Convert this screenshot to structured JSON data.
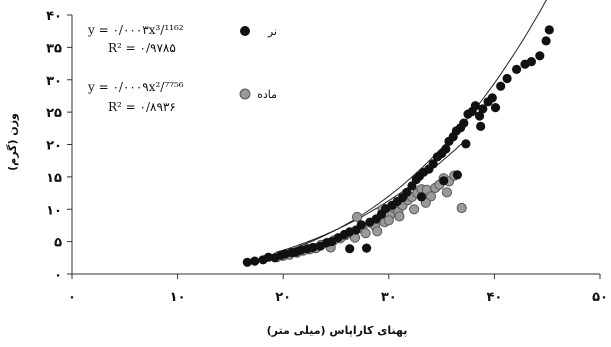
{
  "chart_data": {
    "type": "scatter",
    "x_tick_labels": [
      "۰",
      "۱۰",
      "۲۰",
      "۳۰",
      "۴۰",
      "۵۰"
    ],
    "y_tick_labels": [
      "۰",
      "۵",
      "۱۰",
      "۱۵",
      "۲۰",
      "۲۵",
      "۳۰",
      "۳۵",
      "۴۰"
    ],
    "xlabel": "پهنای کاراپاس (میلی متر)",
    "ylabel": "وزن (گرم)",
    "xlim": [
      0,
      50
    ],
    "ylim": [
      0,
      40
    ],
    "grid": false,
    "legend_position": "top-right",
    "series": [
      {
        "name": "نر",
        "marker": "filled-circle",
        "color": "#111111",
        "equation": "y = ۰/۰۰۰۳x³/¹¹⁶²",
        "r2": "R² = ۰/۹۷۸۵",
        "fit": {
          "a": 0.0003,
          "b": 3.1162
        },
        "points": [
          [
            16.6,
            1.8
          ],
          [
            17.3,
            2.0
          ],
          [
            18.1,
            2.2
          ],
          [
            18.6,
            2.6
          ],
          [
            19.2,
            2.5
          ],
          [
            19.8,
            2.9
          ],
          [
            20.2,
            3.1
          ],
          [
            20.8,
            3.3
          ],
          [
            21.2,
            3.4
          ],
          [
            21.7,
            3.7
          ],
          [
            22.3,
            3.9
          ],
          [
            22.8,
            4.1
          ],
          [
            23.5,
            4.3
          ],
          [
            24.1,
            4.8
          ],
          [
            24.6,
            5.0
          ],
          [
            25.2,
            5.6
          ],
          [
            25.8,
            6.1
          ],
          [
            26.3,
            6.5
          ],
          [
            26.9,
            6.8
          ],
          [
            27.4,
            7.6
          ],
          [
            27.9,
            4.0
          ],
          [
            28.2,
            8.0
          ],
          [
            28.8,
            8.5
          ],
          [
            29.3,
            9.2
          ],
          [
            29.7,
            10.1
          ],
          [
            30.3,
            10.6
          ],
          [
            30.8,
            11.2
          ],
          [
            31.3,
            11.8
          ],
          [
            31.7,
            12.6
          ],
          [
            32.2,
            13.6
          ],
          [
            32.6,
            14.6
          ],
          [
            32.9,
            15.1
          ],
          [
            33.3,
            15.7
          ],
          [
            33.8,
            16.2
          ],
          [
            34.2,
            17.0
          ],
          [
            34.6,
            18.1
          ],
          [
            35.0,
            18.6
          ],
          [
            35.4,
            19.3
          ],
          [
            35.7,
            20.5
          ],
          [
            36.1,
            21.2
          ],
          [
            36.4,
            22.1
          ],
          [
            36.8,
            22.6
          ],
          [
            37.1,
            23.3
          ],
          [
            37.5,
            24.7
          ],
          [
            37.9,
            25.1
          ],
          [
            38.2,
            26.0
          ],
          [
            38.6,
            24.4
          ],
          [
            38.9,
            25.5
          ],
          [
            39.4,
            26.6
          ],
          [
            39.8,
            27.2
          ],
          [
            40.1,
            25.7
          ],
          [
            40.6,
            29.0
          ],
          [
            41.2,
            30.2
          ],
          [
            42.1,
            31.6
          ],
          [
            42.9,
            32.4
          ],
          [
            43.5,
            32.8
          ],
          [
            44.3,
            33.7
          ],
          [
            44.9,
            36.0
          ],
          [
            45.2,
            37.7
          ],
          [
            26.3,
            3.9
          ],
          [
            36.5,
            15.3
          ],
          [
            37.3,
            20.1
          ],
          [
            38.7,
            22.8
          ],
          [
            35.2,
            14.4
          ],
          [
            33.1,
            11.9
          ]
        ]
      },
      {
        "name": "ماده",
        "marker": "gray-circle",
        "color": "#999999",
        "equation": "y = ۰/۰۰۰۹x²/⁷⁷⁵⁶",
        "r2": "R² = ۰/۸۹۳۶",
        "fit": {
          "a": 0.0009,
          "b": 2.7756
        },
        "points": [
          [
            19.4,
            2.6
          ],
          [
            20.0,
            2.8
          ],
          [
            20.6,
            3.0
          ],
          [
            21.3,
            3.3
          ],
          [
            21.9,
            3.6
          ],
          [
            22.5,
            3.8
          ],
          [
            23.1,
            4.0
          ],
          [
            23.6,
            4.5
          ],
          [
            24.2,
            4.8
          ],
          [
            24.8,
            5.2
          ],
          [
            25.4,
            5.5
          ],
          [
            25.9,
            6.0
          ],
          [
            26.5,
            6.4
          ],
          [
            27.0,
            8.8
          ],
          [
            27.5,
            7.0
          ],
          [
            27.8,
            6.3
          ],
          [
            28.3,
            7.9
          ],
          [
            28.7,
            7.4
          ],
          [
            29.2,
            8.4
          ],
          [
            29.6,
            8.0
          ],
          [
            30.1,
            9.1
          ],
          [
            30.5,
            10.2
          ],
          [
            30.9,
            9.6
          ],
          [
            31.3,
            10.6
          ],
          [
            31.8,
            11.4
          ],
          [
            32.2,
            11.9
          ],
          [
            32.7,
            12.5
          ],
          [
            33.1,
            13.1
          ],
          [
            33.6,
            13.0
          ],
          [
            34.0,
            12.0
          ],
          [
            34.4,
            13.3
          ],
          [
            34.8,
            13.8
          ],
          [
            35.2,
            14.8
          ],
          [
            35.7,
            14.3
          ],
          [
            36.2,
            15.2
          ],
          [
            36.9,
            10.2
          ],
          [
            26.8,
            5.6
          ],
          [
            28.9,
            6.6
          ],
          [
            30.0,
            8.3
          ],
          [
            31.0,
            8.9
          ],
          [
            32.4,
            10.0
          ],
          [
            29.4,
            10.0
          ],
          [
            24.5,
            4.1
          ],
          [
            33.5,
            11.0
          ],
          [
            35.5,
            12.6
          ]
        ]
      }
    ]
  }
}
